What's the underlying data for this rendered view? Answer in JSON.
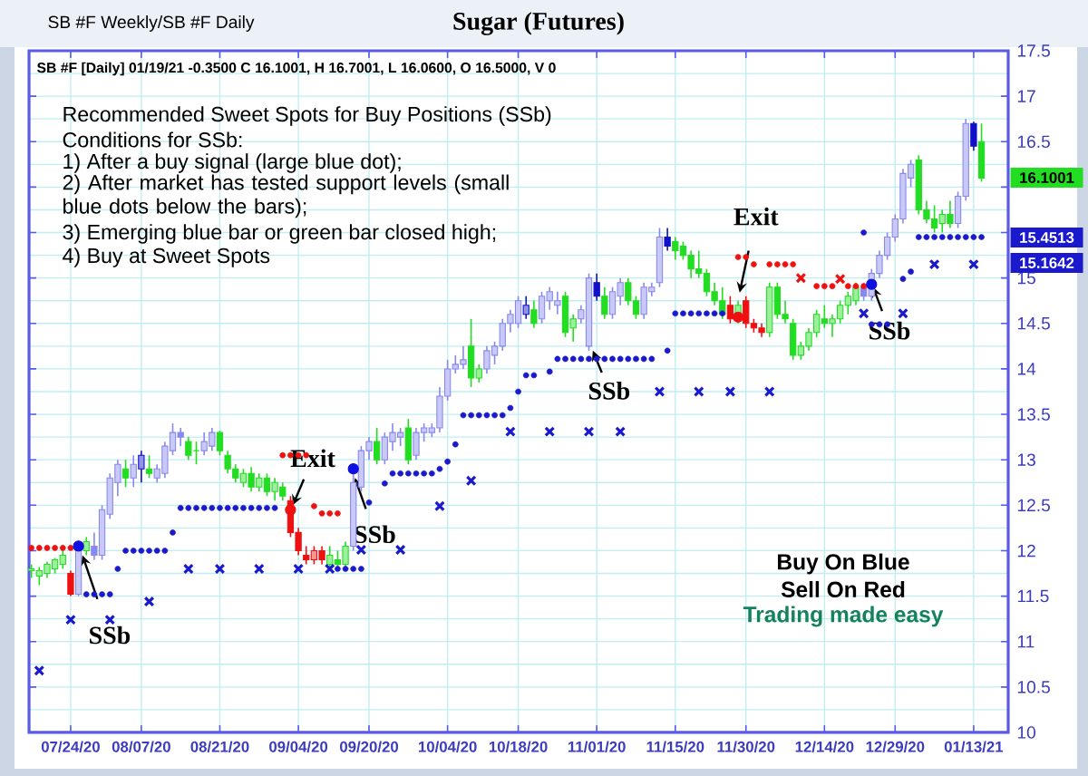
{
  "chart_data": {
    "type": "candlestick",
    "title": "Sugar (Futures)",
    "categories": [
      null,
      null,
      null,
      null,
      null,
      "07/24/20",
      null,
      null,
      null,
      null,
      null,
      null,
      null,
      null,
      "08/07/20",
      null,
      null,
      null,
      null,
      null,
      null,
      null,
      null,
      null,
      "08/21/20",
      null,
      null,
      null,
      null,
      null,
      null,
      null,
      null,
      null,
      "09/04/20",
      null,
      null,
      null,
      null,
      null,
      null,
      null,
      null,
      "09/20/20",
      null,
      null,
      null,
      null,
      null,
      null,
      null,
      null,
      null,
      "10/04/20",
      null,
      null,
      null,
      null,
      null,
      null,
      null,
      null,
      "10/18/20",
      null,
      null,
      null,
      null,
      null,
      null,
      null,
      null,
      null,
      "11/01/20",
      null,
      null,
      null,
      null,
      null,
      null,
      null,
      null,
      null,
      "11/15/20",
      null,
      null,
      null,
      null,
      null,
      null,
      null,
      null,
      "11/30/20",
      null,
      null,
      null,
      null,
      null,
      null,
      null,
      null,
      null,
      "12/14/20",
      null,
      null,
      null,
      null,
      null,
      null,
      null,
      null,
      "12/29/20",
      null,
      null,
      null,
      null,
      null,
      null,
      null,
      null,
      null,
      "01/13/21",
      null
    ],
    "ohlc": [
      [
        11.78,
        11.85,
        11.7,
        11.8
      ],
      [
        11.72,
        11.82,
        11.62,
        11.78
      ],
      [
        11.75,
        11.88,
        11.7,
        11.85
      ],
      [
        11.8,
        11.92,
        11.75,
        11.9
      ],
      [
        11.85,
        12.0,
        11.8,
        11.95
      ],
      [
        11.75,
        11.78,
        11.5,
        11.52
      ],
      [
        11.52,
        12.1,
        11.5,
        12.05
      ],
      [
        12.0,
        12.15,
        11.95,
        12.1
      ],
      [
        12.05,
        12.2,
        11.9,
        11.95
      ],
      [
        11.95,
        12.5,
        11.9,
        12.45
      ],
      [
        12.4,
        12.85,
        12.35,
        12.8
      ],
      [
        12.75,
        13.0,
        12.6,
        12.95
      ],
      [
        12.9,
        13.0,
        12.7,
        12.8
      ],
      [
        12.8,
        13.05,
        12.7,
        12.95
      ],
      [
        12.9,
        13.1,
        12.75,
        13.05
      ],
      [
        12.9,
        13.05,
        12.8,
        12.85
      ],
      [
        12.8,
        12.95,
        12.75,
        12.9
      ],
      [
        12.85,
        13.2,
        12.8,
        13.15
      ],
      [
        13.1,
        13.4,
        13.05,
        13.3
      ],
      [
        13.3,
        13.35,
        13.15,
        13.25
      ],
      [
        13.2,
        13.25,
        13.0,
        13.05
      ],
      [
        13.1,
        13.2,
        12.95,
        13.1
      ],
      [
        13.1,
        13.3,
        13.05,
        13.2
      ],
      [
        13.15,
        13.35,
        13.1,
        13.3
      ],
      [
        13.3,
        13.32,
        13.05,
        13.1
      ],
      [
        13.05,
        13.1,
        12.85,
        12.9
      ],
      [
        12.9,
        12.95,
        12.75,
        12.8
      ],
      [
        12.75,
        12.9,
        12.7,
        12.85
      ],
      [
        12.85,
        12.92,
        12.65,
        12.7
      ],
      [
        12.7,
        12.85,
        12.65,
        12.8
      ],
      [
        12.8,
        12.85,
        12.6,
        12.65
      ],
      [
        12.65,
        12.8,
        12.55,
        12.75
      ],
      [
        12.7,
        12.75,
        12.55,
        12.6
      ],
      [
        12.55,
        12.6,
        12.15,
        12.2
      ],
      [
        12.2,
        12.25,
        11.95,
        12.0
      ],
      [
        11.95,
        12.05,
        11.85,
        11.9
      ],
      [
        11.9,
        12.05,
        11.85,
        12.0
      ],
      [
        12.0,
        12.05,
        11.85,
        11.9
      ],
      [
        11.85,
        12.05,
        11.8,
        11.95
      ],
      [
        11.9,
        12.0,
        11.8,
        11.85
      ],
      [
        11.85,
        12.1,
        11.8,
        12.05
      ],
      [
        12.05,
        12.85,
        12.0,
        12.75
      ],
      [
        12.7,
        13.15,
        12.65,
        13.1
      ],
      [
        13.1,
        13.25,
        13.0,
        13.2
      ],
      [
        13.2,
        13.35,
        12.95,
        13.0
      ],
      [
        13.0,
        13.3,
        12.95,
        13.25
      ],
      [
        13.2,
        13.4,
        13.1,
        13.3
      ],
      [
        13.25,
        13.35,
        13.15,
        13.3
      ],
      [
        13.35,
        13.45,
        12.95,
        13.0
      ],
      [
        13.05,
        13.35,
        13.0,
        13.3
      ],
      [
        13.3,
        13.4,
        13.2,
        13.35
      ],
      [
        13.3,
        13.4,
        13.25,
        13.35
      ],
      [
        13.35,
        13.8,
        13.3,
        13.7
      ],
      [
        13.7,
        14.1,
        13.65,
        14.0
      ],
      [
        14.0,
        14.15,
        13.95,
        14.05
      ],
      [
        14.05,
        14.25,
        14.0,
        14.1
      ],
      [
        14.25,
        14.55,
        13.8,
        13.9
      ],
      [
        13.9,
        14.05,
        13.85,
        14.0
      ],
      [
        14.0,
        14.25,
        13.95,
        14.2
      ],
      [
        14.15,
        14.3,
        14.05,
        14.25
      ],
      [
        14.25,
        14.55,
        14.2,
        14.5
      ],
      [
        14.5,
        14.65,
        14.4,
        14.6
      ],
      [
        14.5,
        14.8,
        14.45,
        14.75
      ],
      [
        14.6,
        14.8,
        14.55,
        14.7
      ],
      [
        14.65,
        14.75,
        14.45,
        14.5
      ],
      [
        14.55,
        14.85,
        14.5,
        14.8
      ],
      [
        14.75,
        14.9,
        14.65,
        14.85
      ],
      [
        14.7,
        14.85,
        14.6,
        14.75
      ],
      [
        14.8,
        14.85,
        14.35,
        14.4
      ],
      [
        14.45,
        14.6,
        14.3,
        14.55
      ],
      [
        14.55,
        14.7,
        14.5,
        14.65
      ],
      [
        14.25,
        15.05,
        14.2,
        15.0
      ],
      [
        14.95,
        15.05,
        14.75,
        14.8
      ],
      [
        14.8,
        14.9,
        14.55,
        14.6
      ],
      [
        14.6,
        14.9,
        14.55,
        14.85
      ],
      [
        14.8,
        15.0,
        14.7,
        14.95
      ],
      [
        14.95,
        15.0,
        14.7,
        14.75
      ],
      [
        14.75,
        14.8,
        14.55,
        14.6
      ],
      [
        14.6,
        14.95,
        14.55,
        14.9
      ],
      [
        14.85,
        14.95,
        14.8,
        14.9
      ],
      [
        14.95,
        15.55,
        14.9,
        15.45
      ],
      [
        15.45,
        15.55,
        15.3,
        15.35
      ],
      [
        15.4,
        15.45,
        15.2,
        15.3
      ],
      [
        15.35,
        15.4,
        15.2,
        15.25
      ],
      [
        15.25,
        15.3,
        15.0,
        15.1
      ],
      [
        15.1,
        15.3,
        15.0,
        15.05
      ],
      [
        15.05,
        15.1,
        14.8,
        14.85
      ],
      [
        14.85,
        14.95,
        14.7,
        14.75
      ],
      [
        14.75,
        14.9,
        14.55,
        14.6
      ],
      [
        14.7,
        14.8,
        14.5,
        14.55
      ],
      [
        14.6,
        14.75,
        14.5,
        14.7
      ],
      [
        14.75,
        14.8,
        14.45,
        14.5
      ],
      [
        14.5,
        14.55,
        14.4,
        14.45
      ],
      [
        14.45,
        14.5,
        14.35,
        14.4
      ],
      [
        14.4,
        14.95,
        14.35,
        14.9
      ],
      [
        14.9,
        14.95,
        14.55,
        14.6
      ],
      [
        14.6,
        14.75,
        14.5,
        14.55
      ],
      [
        14.5,
        14.55,
        14.1,
        14.15
      ],
      [
        14.15,
        14.3,
        14.1,
        14.25
      ],
      [
        14.25,
        14.45,
        14.2,
        14.4
      ],
      [
        14.4,
        14.65,
        14.35,
        14.6
      ],
      [
        14.55,
        14.7,
        14.45,
        14.5
      ],
      [
        14.5,
        14.6,
        14.35,
        14.55
      ],
      [
        14.55,
        14.75,
        14.5,
        14.7
      ],
      [
        14.7,
        14.85,
        14.6,
        14.8
      ],
      [
        14.75,
        14.95,
        14.7,
        14.9
      ],
      [
        14.9,
        14.95,
        14.75,
        14.8
      ],
      [
        14.8,
        15.1,
        14.75,
        15.05
      ],
      [
        15.05,
        15.3,
        15.0,
        15.25
      ],
      [
        15.25,
        15.5,
        15.2,
        15.45
      ],
      [
        15.45,
        15.7,
        15.4,
        15.65
      ],
      [
        15.65,
        16.2,
        15.6,
        16.15
      ],
      [
        16.1,
        16.3,
        16.0,
        16.25
      ],
      [
        16.3,
        16.35,
        15.7,
        15.75
      ],
      [
        15.75,
        15.85,
        15.6,
        15.65
      ],
      [
        15.65,
        15.8,
        15.5,
        15.55
      ],
      [
        15.6,
        15.75,
        15.5,
        15.7
      ],
      [
        15.7,
        15.85,
        15.55,
        15.6
      ],
      [
        15.6,
        15.95,
        15.55,
        15.9
      ],
      [
        15.9,
        16.75,
        15.85,
        16.7
      ],
      [
        16.7,
        16.72,
        16.4,
        16.45
      ],
      [
        16.5,
        16.7001,
        16.06,
        16.1001
      ]
    ],
    "colors": [
      "#22dd22",
      "#22dd22",
      "#22dd22",
      "#22dd22",
      "#22dd22",
      "#ee1111",
      "#8888ee",
      "#22dd22",
      "#8888ee",
      "#8888ee",
      "#8888ee",
      "#8888ee",
      "#22dd22",
      "#8888ee",
      "#1010c8",
      "#22dd22",
      "#8888ee",
      "#8888ee",
      "#8888ee",
      "#8888ee",
      "#22dd22",
      "#22dd22",
      "#8888ee",
      "#8888ee",
      "#22dd22",
      "#22dd22",
      "#22dd22",
      "#22dd22",
      "#22dd22",
      "#22dd22",
      "#22dd22",
      "#22dd22",
      "#22dd22",
      "#ee1111",
      "#ee1111",
      "#ee1111",
      "#ee1111",
      "#ee1111",
      "#22dd22",
      "#22dd22",
      "#22dd22",
      "#8888ee",
      "#8888ee",
      "#8888ee",
      "#22dd22",
      "#8888ee",
      "#8888ee",
      "#8888ee",
      "#22dd22",
      "#8888ee",
      "#8888ee",
      "#8888ee",
      "#8888ee",
      "#8888ee",
      "#8888ee",
      "#8888ee",
      "#22dd22",
      "#22dd22",
      "#8888ee",
      "#8888ee",
      "#8888ee",
      "#8888ee",
      "#8888ee",
      "#1010c8",
      "#22dd22",
      "#8888ee",
      "#8888ee",
      "#8888ee",
      "#22dd22",
      "#22dd22",
      "#8888ee",
      "#8888ee",
      "#1010c8",
      "#22dd22",
      "#8888ee",
      "#8888ee",
      "#22dd22",
      "#22dd22",
      "#8888ee",
      "#8888ee",
      "#8888ee",
      "#1010c8",
      "#22dd22",
      "#22dd22",
      "#22dd22",
      "#22dd22",
      "#22dd22",
      "#22dd22",
      "#22dd22",
      "#ee1111",
      "#22dd22",
      "#ee1111",
      "#ee1111",
      "#ee1111",
      "#22dd22",
      "#22dd22",
      "#22dd22",
      "#22dd22",
      "#22dd22",
      "#22dd22",
      "#22dd22",
      "#22dd22",
      "#22dd22",
      "#22dd22",
      "#22dd22",
      "#22dd22",
      "#8888ee",
      "#8888ee",
      "#8888ee",
      "#8888ee",
      "#8888ee",
      "#8888ee",
      "#8888ee",
      "#22dd22",
      "#22dd22",
      "#22dd22",
      "#22dd22",
      "#22dd22",
      "#8888ee",
      "#8888ee",
      "#1010c8",
      "#22dd22"
    ],
    "series": [
      {
        "type": "scatter",
        "color": "#1a1acc",
        "marker": "circle",
        "values": [
          null,
          null,
          null,
          null,
          null,
          null,
          null,
          11.52,
          11.52,
          11.52,
          11.52,
          11.8,
          12.0,
          12.0,
          12.0,
          12.0,
          12.0,
          12.0,
          12.2,
          12.47,
          12.47,
          12.47,
          12.47,
          12.47,
          12.47,
          12.47,
          12.47,
          12.47,
          12.47,
          12.47,
          12.47,
          12.47,
          null,
          null,
          null,
          null,
          null,
          null,
          null,
          11.8,
          11.8,
          11.8,
          11.8,
          12.53,
          null,
          12.74,
          12.85,
          12.85,
          12.85,
          12.85,
          12.85,
          12.85,
          12.9,
          12.98,
          13.17,
          13.49,
          13.49,
          13.49,
          13.49,
          13.49,
          13.49,
          13.57,
          13.75,
          13.93,
          13.93,
          null,
          13.97,
          14.11,
          14.11,
          14.11,
          14.11,
          14.11,
          14.11,
          14.11,
          14.11,
          14.11,
          14.11,
          14.11,
          14.11,
          14.11,
          null,
          14.2,
          14.61,
          14.61,
          14.61,
          14.61,
          14.61,
          14.61,
          14.61,
          null,
          null,
          null,
          null,
          null,
          null,
          null,
          null,
          null,
          null,
          null,
          null,
          null,
          null,
          null,
          null,
          null,
          15.5,
          14.49,
          14.49,
          14.49,
          null,
          14.99,
          15.07,
          15.45,
          15.45,
          15.45,
          15.45,
          15.45,
          15.45,
          15.45,
          15.45,
          15.45
        ]
      },
      {
        "type": "scatter",
        "color": "#ee1111",
        "marker": "circle",
        "values": [
          12.03,
          12.03,
          12.03,
          12.03,
          12.03,
          12.03,
          null,
          null,
          null,
          null,
          null,
          null,
          null,
          null,
          null,
          null,
          null,
          null,
          null,
          null,
          null,
          null,
          null,
          null,
          null,
          null,
          null,
          null,
          null,
          null,
          null,
          null,
          13.05,
          13.05,
          13.05,
          13.05,
          12.49,
          12.41,
          12.41,
          12.41,
          null,
          null,
          null,
          null,
          null,
          null,
          null,
          null,
          null,
          null,
          null,
          null,
          null,
          null,
          null,
          null,
          null,
          null,
          null,
          null,
          null,
          null,
          null,
          null,
          null,
          null,
          null,
          null,
          null,
          null,
          null,
          null,
          null,
          null,
          null,
          null,
          null,
          null,
          null,
          null,
          null,
          null,
          null,
          null,
          null,
          null,
          null,
          null,
          null,
          null,
          15.23,
          15.23,
          15.15,
          null,
          15.15,
          15.15,
          15.15,
          15.15,
          null,
          null,
          14.91,
          14.91,
          14.91,
          null,
          14.91,
          14.91,
          14.91,
          null,
          null,
          null,
          null,
          null,
          null,
          null,
          null,
          null,
          null,
          null,
          null,
          null,
          null,
          null
        ]
      },
      {
        "type": "scatter",
        "color": "#1a1acc",
        "marker": "cross",
        "values": [
          null,
          10.68,
          null,
          null,
          null,
          11.24,
          null,
          null,
          null,
          null,
          11.24,
          null,
          null,
          null,
          null,
          11.44,
          null,
          null,
          null,
          null,
          11.8,
          null,
          null,
          null,
          11.8,
          null,
          null,
          null,
          null,
          11.8,
          null,
          null,
          null,
          null,
          11.8,
          null,
          null,
          null,
          11.8,
          null,
          null,
          null,
          12.01,
          null,
          null,
          null,
          null,
          12.01,
          null,
          null,
          null,
          null,
          12.49,
          null,
          null,
          null,
          12.77,
          null,
          null,
          null,
          null,
          13.31,
          null,
          null,
          null,
          null,
          13.31,
          null,
          null,
          null,
          null,
          13.31,
          null,
          null,
          null,
          13.31,
          null,
          null,
          null,
          null,
          13.75,
          null,
          null,
          null,
          null,
          13.75,
          null,
          null,
          null,
          13.75,
          null,
          null,
          null,
          null,
          13.75,
          null,
          null,
          null,
          null,
          null,
          null,
          null,
          null,
          null,
          null,
          null,
          14.61,
          null,
          null,
          null,
          null,
          14.61,
          null,
          null,
          null,
          15.15,
          null,
          null,
          null,
          null,
          15.15,
          null
        ]
      },
      {
        "type": "scatter",
        "color": "#ee1111",
        "marker": "cross",
        "values": [
          null,
          null,
          null,
          null,
          null,
          null,
          null,
          null,
          null,
          null,
          null,
          null,
          null,
          null,
          null,
          null,
          null,
          null,
          null,
          null,
          null,
          null,
          null,
          null,
          null,
          null,
          null,
          null,
          null,
          null,
          null,
          null,
          null,
          null,
          null,
          null,
          null,
          null,
          null,
          null,
          null,
          null,
          null,
          null,
          null,
          null,
          null,
          null,
          null,
          null,
          null,
          null,
          null,
          null,
          null,
          null,
          null,
          null,
          null,
          null,
          null,
          null,
          null,
          null,
          null,
          null,
          null,
          null,
          null,
          null,
          null,
          null,
          null,
          null,
          null,
          null,
          null,
          null,
          null,
          null,
          null,
          null,
          null,
          null,
          null,
          null,
          null,
          null,
          null,
          null,
          null,
          null,
          null,
          null,
          null,
          null,
          null,
          null,
          15.0,
          null,
          null,
          null,
          null,
          14.99,
          null,
          null,
          null,
          null,
          null,
          null,
          null,
          null,
          null,
          null,
          null,
          null,
          null,
          null,
          null,
          null,
          null,
          null
        ]
      },
      {
        "type": "bubble",
        "color": "#1010e0",
        "values": [
          null,
          null,
          null,
          null,
          null,
          null,
          12.05,
          null,
          null,
          null,
          null,
          null,
          null,
          null,
          null,
          null,
          null,
          null,
          null,
          null,
          null,
          null,
          null,
          null,
          null,
          null,
          null,
          null,
          null,
          null,
          null,
          null,
          null,
          null,
          null,
          null,
          null,
          null,
          null,
          null,
          null,
          12.9,
          null,
          null,
          null,
          null,
          null,
          null,
          null,
          null,
          null,
          null,
          null,
          null,
          null,
          null,
          null,
          null,
          null,
          null,
          null,
          null,
          null,
          null,
          null,
          null,
          null,
          null,
          null,
          null,
          null,
          null,
          null,
          null,
          null,
          null,
          null,
          null,
          null,
          null,
          null,
          null,
          null,
          null,
          null,
          null,
          null,
          null,
          null,
          null,
          null,
          null,
          null,
          null,
          null,
          null,
          null,
          null,
          null,
          null,
          null,
          null,
          null,
          null,
          null,
          null,
          null,
          14.93,
          null,
          null,
          null,
          null,
          null,
          null,
          null,
          null,
          null,
          null,
          null,
          null,
          null,
          null
        ],
        "sizes": [
          null,
          null,
          null,
          null,
          null,
          null,
          1,
          null,
          null,
          null,
          null,
          null,
          null,
          null,
          null,
          null,
          null,
          null,
          null,
          null,
          null,
          null,
          null,
          null,
          null,
          null,
          null,
          null,
          null,
          null,
          null,
          null,
          null,
          null,
          null,
          null,
          null,
          null,
          null,
          null,
          null,
          1,
          null,
          null,
          null,
          null,
          null,
          null,
          null,
          null,
          null,
          null,
          null,
          null,
          null,
          null,
          null,
          null,
          null,
          null,
          null,
          null,
          null,
          null,
          null,
          null,
          null,
          null,
          null,
          null,
          null,
          null,
          null,
          null,
          null,
          null,
          null,
          null,
          null,
          null,
          null,
          null,
          null,
          null,
          null,
          null,
          null,
          null,
          null,
          null,
          null,
          null,
          null,
          null,
          null,
          null,
          null,
          null,
          null,
          null,
          null,
          null,
          null,
          null,
          null,
          null,
          null,
          1,
          null,
          null,
          null,
          null,
          null,
          null,
          null,
          null,
          null,
          null,
          null,
          null,
          null,
          null
        ]
      },
      {
        "type": "bubble",
        "color": "#ee1111",
        "values": [
          null,
          null,
          null,
          null,
          null,
          null,
          null,
          null,
          null,
          null,
          null,
          null,
          null,
          null,
          null,
          null,
          null,
          null,
          null,
          null,
          null,
          null,
          null,
          null,
          null,
          null,
          null,
          null,
          null,
          null,
          null,
          null,
          null,
          12.45,
          null,
          null,
          null,
          null,
          null,
          null,
          null,
          null,
          null,
          null,
          null,
          null,
          null,
          null,
          null,
          null,
          null,
          null,
          null,
          null,
          null,
          null,
          null,
          null,
          null,
          null,
          null,
          null,
          null,
          null,
          null,
          null,
          null,
          null,
          null,
          null,
          null,
          null,
          null,
          null,
          null,
          null,
          null,
          null,
          null,
          null,
          null,
          null,
          null,
          null,
          null,
          null,
          null,
          null,
          null,
          null,
          14.57,
          null,
          null,
          null,
          null,
          null,
          null,
          null,
          null,
          null,
          null,
          null,
          null,
          null,
          null,
          null,
          null,
          null,
          null,
          null,
          null,
          null,
          null,
          null,
          null,
          null,
          null,
          null,
          null,
          null,
          null,
          null
        ],
        "sizes": [
          null,
          null,
          null,
          null,
          null,
          null,
          null,
          null,
          null,
          null,
          null,
          null,
          null,
          null,
          null,
          null,
          null,
          null,
          null,
          null,
          null,
          null,
          null,
          null,
          null,
          null,
          null,
          null,
          null,
          null,
          null,
          null,
          null,
          1,
          null,
          null,
          null,
          null,
          null,
          null,
          null,
          null,
          null,
          null,
          null,
          null,
          null,
          null,
          null,
          null,
          null,
          null,
          null,
          null,
          null,
          null,
          null,
          null,
          null,
          null,
          null,
          null,
          null,
          null,
          null,
          null,
          null,
          null,
          null,
          null,
          null,
          null,
          null,
          null,
          null,
          null,
          null,
          null,
          null,
          null,
          null,
          null,
          null,
          null,
          null,
          null,
          null,
          null,
          null,
          null,
          1,
          null,
          null,
          null,
          null,
          null,
          null,
          null,
          null,
          null,
          null,
          null,
          null,
          null,
          null,
          null,
          null,
          null,
          null,
          null,
          null,
          null,
          null,
          null,
          null,
          null,
          null,
          null,
          null,
          null,
          null,
          null
        ]
      }
    ],
    "ylim": [
      10,
      17.5
    ],
    "yticks": [
      10,
      10.5,
      11,
      11.5,
      12,
      12.5,
      13,
      13.5,
      14,
      14.5,
      15,
      {
        "value": 15.5,
        "label": null
      },
      {
        "value": 16,
        "label": null
      },
      16.5,
      17,
      17.5
    ],
    "grid": true,
    "annotations": [
      "SB #F Weekly/SB #F Daily",
      "SB #F [Daily] 01/19/21  -0.3500 C 16.1001, H 16.7001, L 16.0600, O 16.5000, V 0",
      "Recommended Sweet Spots for Buy Positions (SSb)",
      "Conditions for SSb:",
      "1) After a buy signal (large blue dot);",
      "2) After market has tested support levels (small blue dots below the bars);",
      "3) Emerging blue bar or green bar closed high;",
      "4) Buy at Sweet Spots",
      "Buy On Blue",
      "Sell On Red",
      "Trading made easy",
      {
        "text": "SSb",
        "y": 11.95
      },
      {
        "text": "Exit",
        "y": 12.5
      },
      {
        "text": "SSb",
        "y": 12.8
      },
      {
        "text": "SSb",
        "y": 14.2
      },
      "Exit",
      "SSb",
      "16.1001",
      "15.4513",
      "15.1642"
    ]
  }
}
